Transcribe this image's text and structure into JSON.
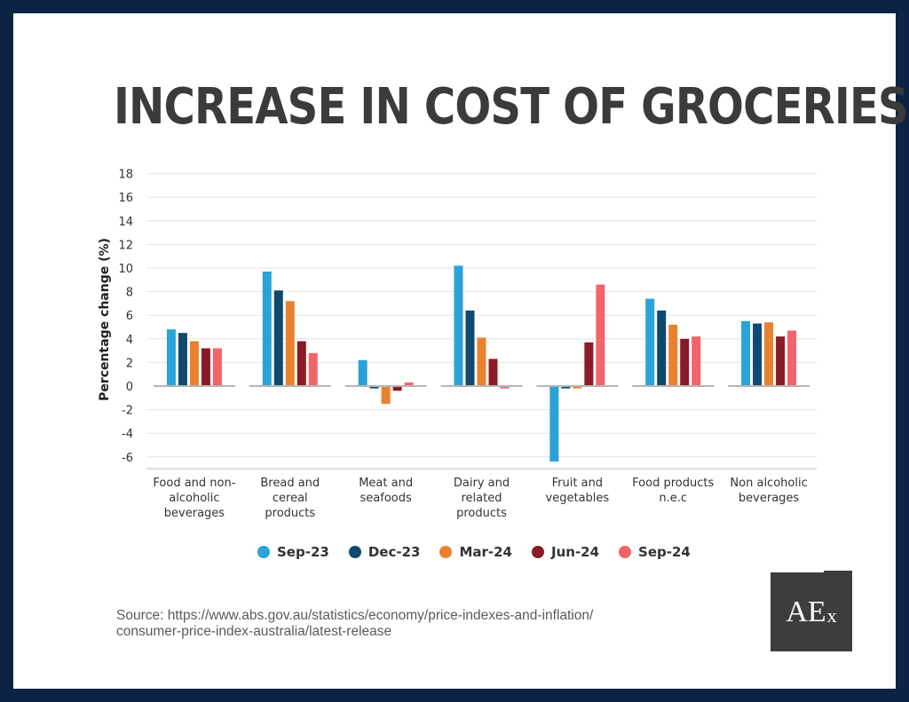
{
  "title": "INCREASE IN COST OF GROCERIES",
  "source": {
    "line1": "Source: https://www.abs.gov.au/statistics/economy/price-indexes-and-inflation/",
    "line2": "consumer-price-index-australia/latest-release"
  },
  "logo": {
    "main": "AE",
    "sub": "x"
  },
  "colors": {
    "Sep-23": "#2aa3d6",
    "Dec-23": "#0f4a6e",
    "Mar-24": "#e8822e",
    "Jun-24": "#8b1a27",
    "Sep-24": "#f1646a"
  },
  "chart_data": {
    "type": "bar",
    "title": "",
    "xlabel": "",
    "ylabel": "Percentage change (%)",
    "ylim": [
      -7,
      18
    ],
    "yticks": [
      18,
      16,
      14,
      12,
      10,
      8,
      6,
      4,
      2,
      0,
      -2,
      -4,
      -6
    ],
    "grid": true,
    "legend_position": "bottom",
    "categories": [
      [
        "Food and non-",
        "alcoholic",
        "beverages"
      ],
      [
        "Bread and",
        "cereal",
        "products"
      ],
      [
        "Meat and",
        "seafoods"
      ],
      [
        "Dairy and",
        "related",
        "products"
      ],
      [
        "Fruit and",
        "vegetables"
      ],
      [
        "Food products",
        "n.e.c"
      ],
      [
        "Non alcoholic",
        "beverages"
      ]
    ],
    "series": [
      {
        "name": "Sep-23",
        "values": [
          4.8,
          9.7,
          2.2,
          10.2,
          -6.4,
          7.4,
          5.5
        ]
      },
      {
        "name": "Dec-23",
        "values": [
          4.5,
          8.1,
          -0.2,
          6.4,
          -0.2,
          6.4,
          5.3
        ]
      },
      {
        "name": "Mar-24",
        "values": [
          3.8,
          7.2,
          -1.5,
          4.1,
          -0.2,
          5.2,
          5.4
        ]
      },
      {
        "name": "Jun-24",
        "values": [
          3.2,
          3.8,
          -0.4,
          2.3,
          3.7,
          4.0,
          4.2
        ]
      },
      {
        "name": "Sep-24",
        "values": [
          3.2,
          2.8,
          0.3,
          -0.2,
          8.6,
          4.2,
          4.7
        ]
      }
    ]
  }
}
